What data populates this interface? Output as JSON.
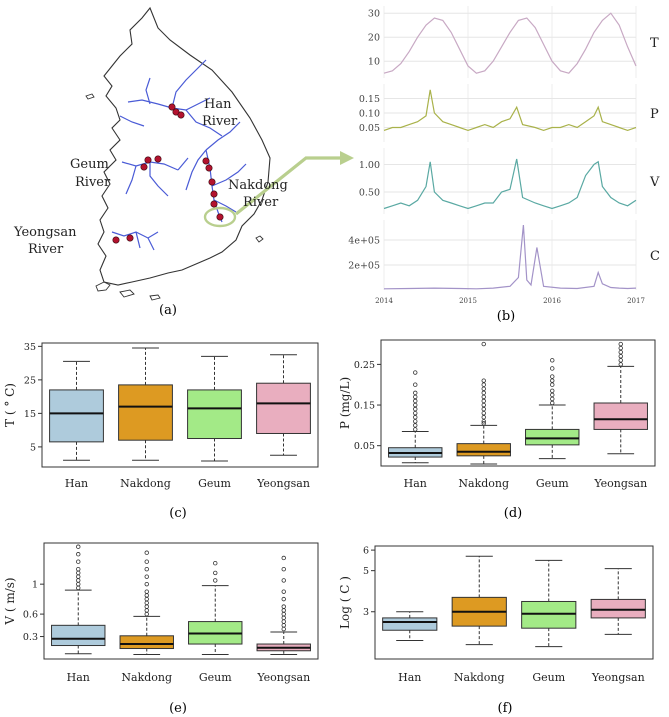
{
  "panel_labels": [
    "(a)",
    "(b)",
    "(c)",
    "(d)",
    "(e)",
    "(f)"
  ],
  "map": {
    "labels": [
      {
        "text": "Han"
      },
      {
        "text": "River"
      },
      {
        "text": "Geum"
      },
      {
        "text": "River"
      },
      {
        "text": "Nakdong"
      },
      {
        "text": "River"
      },
      {
        "text": "Yeongsan"
      },
      {
        "text": "River"
      }
    ],
    "colors": {
      "river": "#4a5bd6",
      "site": "#b3122e",
      "outline": "#333333",
      "highlight": "#b9cf8e"
    }
  },
  "chart_data": [
    {
      "id": "b",
      "type": "line",
      "x_axis": {
        "ticks": [
          "2014",
          "2015",
          "2016",
          "2017"
        ],
        "range": [
          2014.0,
          2017.0
        ]
      },
      "series": [
        {
          "name": "T",
          "color": "#c8a9c4",
          "ylim": [
            3,
            33
          ],
          "yticks": [
            "10",
            "20",
            "30"
          ],
          "x": [
            2014.0,
            2014.1,
            2014.2,
            2014.3,
            2014.4,
            2014.5,
            2014.6,
            2014.7,
            2014.8,
            2014.9,
            2015.0,
            2015.1,
            2015.2,
            2015.3,
            2015.4,
            2015.5,
            2015.6,
            2015.7,
            2015.8,
            2015.9,
            2016.0,
            2016.1,
            2016.2,
            2016.3,
            2016.4,
            2016.5,
            2016.6,
            2016.7,
            2016.8,
            2016.9,
            2017.0
          ],
          "y": [
            5,
            6,
            9,
            14,
            20,
            25,
            28,
            27,
            22,
            15,
            8,
            5,
            6,
            10,
            16,
            22,
            27,
            28,
            24,
            17,
            10,
            6,
            5,
            9,
            15,
            22,
            27,
            30,
            25,
            16,
            8
          ]
        },
        {
          "name": "P",
          "color": "#a9b24a",
          "ylim": [
            0.0,
            0.2
          ],
          "yticks": [
            "0.05",
            "0.10",
            "0.15"
          ],
          "x": [
            2014.0,
            2014.1,
            2014.2,
            2014.3,
            2014.4,
            2014.5,
            2014.55,
            2014.6,
            2014.7,
            2014.8,
            2014.9,
            2015.0,
            2015.1,
            2015.2,
            2015.3,
            2015.4,
            2015.5,
            2015.58,
            2015.65,
            2015.8,
            2015.9,
            2016.0,
            2016.1,
            2016.2,
            2016.3,
            2016.4,
            2016.5,
            2016.55,
            2016.6,
            2016.7,
            2016.8,
            2016.9,
            2017.0
          ],
          "y": [
            0.04,
            0.05,
            0.05,
            0.06,
            0.07,
            0.09,
            0.18,
            0.1,
            0.07,
            0.06,
            0.05,
            0.04,
            0.05,
            0.06,
            0.05,
            0.07,
            0.08,
            0.12,
            0.06,
            0.05,
            0.04,
            0.05,
            0.05,
            0.06,
            0.05,
            0.07,
            0.09,
            0.12,
            0.07,
            0.06,
            0.05,
            0.04,
            0.05
          ]
        },
        {
          "name": "V",
          "color": "#5aa9a3",
          "ylim": [
            0.1,
            1.3
          ],
          "yticks": [
            "0.50",
            "1.00"
          ],
          "x": [
            2014.0,
            2014.1,
            2014.2,
            2014.3,
            2014.4,
            2014.5,
            2014.55,
            2014.6,
            2014.7,
            2014.8,
            2014.9,
            2015.0,
            2015.1,
            2015.2,
            2015.3,
            2015.4,
            2015.5,
            2015.58,
            2015.65,
            2015.8,
            2015.9,
            2016.0,
            2016.1,
            2016.2,
            2016.3,
            2016.4,
            2016.5,
            2016.55,
            2016.6,
            2016.7,
            2016.8,
            2016.9,
            2017.0
          ],
          "y": [
            0.2,
            0.25,
            0.3,
            0.25,
            0.35,
            0.6,
            1.05,
            0.5,
            0.35,
            0.3,
            0.25,
            0.2,
            0.25,
            0.3,
            0.3,
            0.5,
            0.55,
            1.1,
            0.4,
            0.3,
            0.25,
            0.2,
            0.25,
            0.3,
            0.4,
            0.8,
            1.0,
            1.05,
            0.6,
            0.4,
            0.3,
            0.25,
            0.35
          ]
        },
        {
          "name": "C",
          "color": "#a393c8",
          "ylim": [
            0,
            560000
          ],
          "yticks": [
            "2e+05",
            "4e+05"
          ],
          "x": [
            2014.0,
            2014.3,
            2014.6,
            2014.9,
            2015.1,
            2015.3,
            2015.5,
            2015.6,
            2015.66,
            2015.7,
            2015.75,
            2015.82,
            2015.9,
            2016.1,
            2016.3,
            2016.5,
            2016.55,
            2016.6,
            2016.7,
            2016.8,
            2016.9,
            2017.0
          ],
          "y": [
            10000,
            12000,
            15000,
            12000,
            10000,
            15000,
            30000,
            100000,
            520000,
            80000,
            40000,
            340000,
            30000,
            15000,
            12000,
            30000,
            140000,
            50000,
            20000,
            15000,
            12000,
            15000
          ]
        }
      ]
    },
    {
      "id": "c",
      "type": "box",
      "ylabel": "T ( ° C)",
      "ylim": [
        -1,
        36
      ],
      "yticks": [
        5,
        15,
        25,
        35
      ],
      "categories": [
        "Han",
        "Nakdong",
        "Geum",
        "Yeongsan"
      ],
      "colors": [
        "#aecbdc",
        "#dd9a22",
        "#a3ea87",
        "#e9aebf"
      ],
      "boxes": [
        {
          "min": 1,
          "q1": 6.5,
          "median": 15,
          "q3": 22,
          "max": 30.5,
          "outliers": []
        },
        {
          "min": 1,
          "q1": 7,
          "median": 17,
          "q3": 23.5,
          "max": 34.5,
          "outliers": []
        },
        {
          "min": 0.8,
          "q1": 7.5,
          "median": 16.5,
          "q3": 22,
          "max": 32,
          "outliers": []
        },
        {
          "min": 2.5,
          "q1": 9,
          "median": 18,
          "q3": 24,
          "max": 32.5,
          "outliers": []
        }
      ]
    },
    {
      "id": "d",
      "type": "box",
      "ylabel": "P (mg/L)",
      "ylim": [
        0.0,
        0.31
      ],
      "yticks": [
        0.05,
        0.15,
        0.25
      ],
      "categories": [
        "Han",
        "Nakdong",
        "Geum",
        "Yeongsan"
      ],
      "colors": [
        "#aecbdc",
        "#dd9a22",
        "#a3ea87",
        "#e9aebf"
      ],
      "boxes": [
        {
          "min": 0.008,
          "q1": 0.022,
          "median": 0.032,
          "q3": 0.045,
          "max": 0.085,
          "outliers": [
            0.09,
            0.1,
            0.11,
            0.12,
            0.13,
            0.14,
            0.15,
            0.16,
            0.17,
            0.18,
            0.2,
            0.23
          ]
        },
        {
          "min": 0.005,
          "q1": 0.025,
          "median": 0.035,
          "q3": 0.055,
          "max": 0.1,
          "outliers": [
            0.105,
            0.11,
            0.12,
            0.13,
            0.14,
            0.15,
            0.16,
            0.17,
            0.18,
            0.19,
            0.2,
            0.21,
            0.3
          ]
        },
        {
          "min": 0.018,
          "q1": 0.052,
          "median": 0.068,
          "q3": 0.09,
          "max": 0.15,
          "outliers": [
            0.155,
            0.165,
            0.175,
            0.185,
            0.2,
            0.21,
            0.22,
            0.24,
            0.26
          ]
        },
        {
          "min": 0.03,
          "q1": 0.09,
          "median": 0.115,
          "q3": 0.155,
          "max": 0.245,
          "outliers": [
            0.25,
            0.26,
            0.27,
            0.28,
            0.29,
            0.3
          ]
        }
      ]
    },
    {
      "id": "e",
      "type": "box",
      "ylabel": "V ( m/s)",
      "ylim": [
        0.0,
        1.55
      ],
      "yticks": [
        0.3,
        0.6,
        1.0
      ],
      "categories": [
        "Han",
        "Nakdong",
        "Geum",
        "Yeongsan"
      ],
      "colors": [
        "#aecbdc",
        "#dd9a22",
        "#a3ea87",
        "#e9aebf"
      ],
      "boxes": [
        {
          "min": 0.07,
          "q1": 0.18,
          "median": 0.27,
          "q3": 0.45,
          "max": 0.92,
          "outliers": [
            0.95,
            1.0,
            1.05,
            1.1,
            1.15,
            1.2,
            1.3,
            1.4,
            1.5
          ]
        },
        {
          "min": 0.06,
          "q1": 0.14,
          "median": 0.2,
          "q3": 0.31,
          "max": 0.57,
          "outliers": [
            0.6,
            0.65,
            0.7,
            0.75,
            0.8,
            0.85,
            0.9,
            1.0,
            1.1,
            1.2,
            1.3,
            1.42
          ]
        },
        {
          "min": 0.06,
          "q1": 0.2,
          "median": 0.34,
          "q3": 0.5,
          "max": 0.98,
          "outliers": [
            1.05,
            1.15,
            1.28
          ]
        },
        {
          "min": 0.06,
          "q1": 0.11,
          "median": 0.15,
          "q3": 0.2,
          "max": 0.36,
          "outliers": [
            0.4,
            0.45,
            0.5,
            0.55,
            0.6,
            0.65,
            0.7,
            0.8,
            0.9,
            1.05,
            1.2,
            1.35
          ]
        }
      ]
    },
    {
      "id": "f",
      "type": "box",
      "ylabel": "Log ( C )",
      "ylim": [
        0.7,
        6.2
      ],
      "yticks": [
        3,
        5,
        6
      ],
      "categories": [
        "Han",
        "Nakdong",
        "Geum",
        "Yeongsan"
      ],
      "colors": [
        "#aecbdc",
        "#dd9a22",
        "#a3ea87",
        "#e9aebf"
      ],
      "boxes": [
        {
          "min": 1.6,
          "q1": 2.1,
          "median": 2.5,
          "q3": 2.7,
          "max": 3.0,
          "outliers": []
        },
        {
          "min": 1.4,
          "q1": 2.3,
          "median": 3.0,
          "q3": 3.7,
          "max": 5.7,
          "outliers": []
        },
        {
          "min": 1.3,
          "q1": 2.2,
          "median": 2.9,
          "q3": 3.5,
          "max": 5.5,
          "outliers": []
        },
        {
          "min": 1.9,
          "q1": 2.7,
          "median": 3.1,
          "q3": 3.6,
          "max": 5.1,
          "outliers": []
        }
      ]
    }
  ]
}
